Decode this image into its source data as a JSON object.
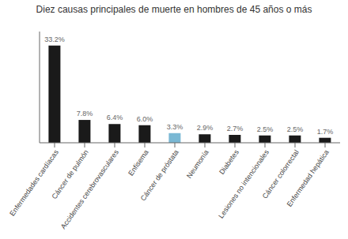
{
  "chart_data": {
    "type": "bar",
    "title": "Diez causas principales de muerte en hombres de 45 años o más",
    "categories": [
      "Enfermedades cardíacas",
      "Cáncer de pulmón",
      "Accidentes cerebrovasculares",
      "Enfisema",
      "Cáncer de próstata",
      "Neumonía",
      "Diabetes",
      "Lesiones no intencionales",
      "Cáncer colorrectal",
      "Enfermedad hepática"
    ],
    "values": [
      33.2,
      7.8,
      6.4,
      6.0,
      3.3,
      2.9,
      2.7,
      2.5,
      2.5,
      1.7
    ],
    "value_labels": [
      "33.2%",
      "7.8%",
      "6.4%",
      "6.0%",
      "3.3%",
      "2.9%",
      "2.7%",
      "2.5%",
      "2.5%",
      "1.7%"
    ],
    "colors": [
      "#1a1a1a",
      "#1a1a1a",
      "#1a1a1a",
      "#1a1a1a",
      "#7ab8d4",
      "#1a1a1a",
      "#1a1a1a",
      "#1a1a1a",
      "#1a1a1a",
      "#1a1a1a"
    ],
    "ylim": [
      0,
      38
    ],
    "grid": false,
    "data_labels": true,
    "tick_labels": "x"
  }
}
